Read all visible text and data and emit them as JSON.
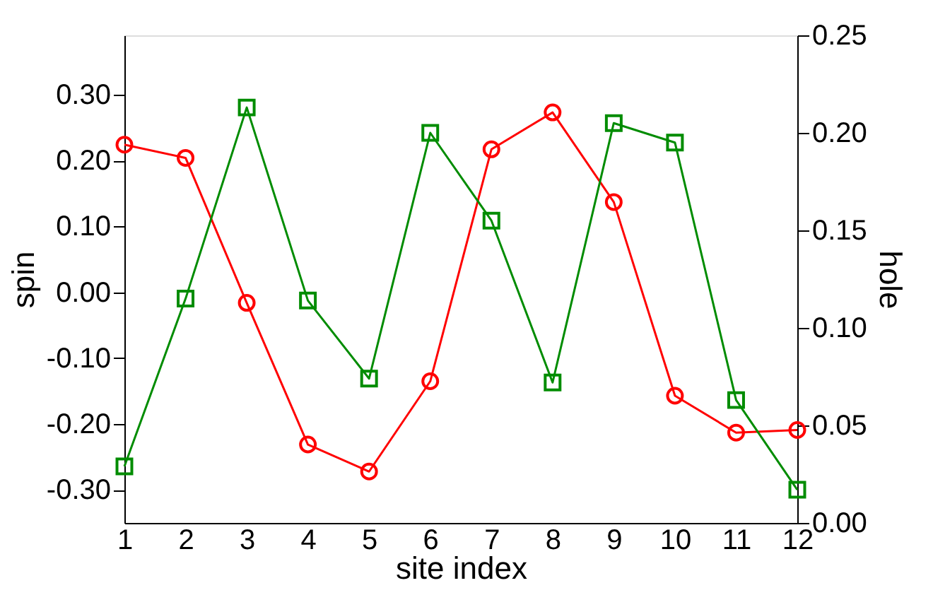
{
  "chart_data": {
    "type": "line",
    "xlabel": "site index",
    "ylabel": "spin",
    "y2label": "hole",
    "x": [
      1,
      2,
      3,
      4,
      5,
      6,
      7,
      8,
      9,
      10,
      11,
      12
    ],
    "xlim": [
      1,
      12
    ],
    "xticks": [
      1,
      2,
      3,
      4,
      5,
      6,
      7,
      8,
      9,
      10,
      11,
      12
    ],
    "ylim": [
      -0.35,
      0.39
    ],
    "yticks": [
      {
        "value": -0.3,
        "label": "-0.30"
      },
      {
        "value": -0.2,
        "label": "-0.20"
      },
      {
        "value": -0.1,
        "label": "-0.10"
      },
      {
        "value": 0,
        "label": "0.00"
      },
      {
        "value": 0.1,
        "label": "0.10"
      },
      {
        "value": 0.2,
        "label": "0.20"
      },
      {
        "value": 0.3,
        "label": "0.30"
      }
    ],
    "y2lim": [
      0,
      0.25
    ],
    "y2ticks": [
      {
        "value": 0,
        "label": "0.00"
      },
      {
        "value": 0.05,
        "label": "0.05"
      },
      {
        "value": 0.1,
        "label": "0.10"
      },
      {
        "value": 0.15,
        "label": "0.15"
      },
      {
        "value": 0.2,
        "label": "0.20"
      },
      {
        "value": 0.25,
        "label": "0.25"
      }
    ],
    "grid": false,
    "line_style": "solid",
    "series": [
      {
        "color": "#ff0000",
        "marker": "circle",
        "values": [
          0.224,
          0.204,
          -0.016,
          -0.231,
          -0.272,
          -0.135,
          0.217,
          0.273,
          0.137,
          -0.157,
          -0.213,
          -0.209
        ]
      },
      {
        "color": "#008c00",
        "marker": "square",
        "axis": "y2",
        "values": [
          0.029,
          0.115,
          0.213,
          0.114,
          0.074,
          0.2,
          0.155,
          0.072,
          0.205,
          0.195,
          0.063,
          0.017
        ]
      }
    ]
  }
}
